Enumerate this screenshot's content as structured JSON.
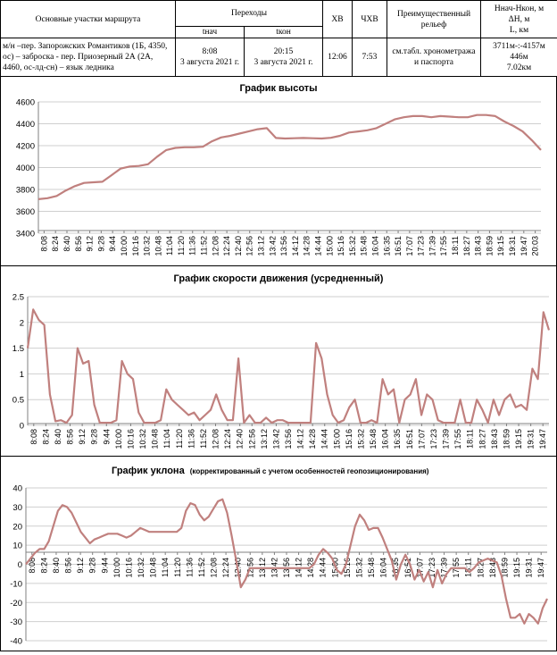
{
  "header_table": {
    "col_sections": "Основные участки маршрута",
    "col_transitions": "Переходы",
    "col_t_start": "tнач",
    "col_t_end": "tкон",
    "col_xv": "ХВ",
    "col_chxv": "ЧХВ",
    "col_relief": "Преимущественный рельеф",
    "col_h_line1": "Hнач-Hкон, м",
    "col_h_line2": "ΔH, м",
    "col_h_line3": "L, км",
    "route_text": "м/н –пер. Запорожских Романтиков (1Б, 4350, ос) – заброска - пер. Приозерный 2А (2А, 4460, ос-лд-сн) – язык ледника",
    "t_start_time": "8:08",
    "t_start_date": "3 августа 2021 г.",
    "t_end_time": "20:15",
    "t_end_date": "3 августа 2021 г.",
    "xv": "12:06",
    "chxv": "7:53",
    "relief": "см.табл. хронометража и паспорта",
    "h_range": "3711м-:-4157м",
    "dh": "446м",
    "length": "7.02км"
  },
  "chart_data": [
    {
      "type": "line",
      "title": "График высоты",
      "color": "#c0807e",
      "ylim": [
        3400,
        4600
      ],
      "yticks": [
        "4600",
        "4400",
        "4200",
        "4000",
        "3800",
        "3600",
        "3400"
      ],
      "xticks": [
        "8:08",
        "8:24",
        "8:40",
        "8:56",
        "9:12",
        "9:28",
        "9:44",
        "10:00",
        "10:16",
        "10:32",
        "10:48",
        "11:04",
        "11:20",
        "11:36",
        "11:52",
        "12:08",
        "12:24",
        "12:40",
        "12:56",
        "13:12",
        "13:42",
        "13:56",
        "14:12",
        "14:28",
        "14:44",
        "15:00",
        "15:16",
        "15:32",
        "15:48",
        "16:04",
        "16:35",
        "16:51",
        "17:07",
        "17:23",
        "17:39",
        "17:55",
        "18:11",
        "18:27",
        "18:43",
        "18:59",
        "19:15",
        "19:31",
        "19:47",
        "20:03"
      ],
      "values": [
        3711,
        3720,
        3740,
        3790,
        3830,
        3860,
        3865,
        3870,
        3930,
        3990,
        4010,
        4015,
        4030,
        4100,
        4160,
        4180,
        4185,
        4185,
        4190,
        4240,
        4275,
        4290,
        4310,
        4330,
        4350,
        4360,
        4270,
        4265,
        4268,
        4270,
        4268,
        4265,
        4272,
        4290,
        4320,
        4330,
        4340,
        4360,
        4400,
        4440,
        4460,
        4470,
        4470,
        4460,
        4470,
        4465,
        4460,
        4460,
        4480,
        4480,
        4470,
        4420,
        4380,
        4330,
        4250,
        4160
      ]
    },
    {
      "type": "line",
      "title": "График скорости движения (усредненный)",
      "color": "#c0807e",
      "ylim": [
        0,
        2.5
      ],
      "yticks": [
        "2.5",
        "2",
        "1.5",
        "1",
        "0.5",
        "0"
      ],
      "xticks": [
        "8:08",
        "8:24",
        "8:40",
        "8:56",
        "9:12",
        "9:28",
        "9:44",
        "10:00",
        "10:16",
        "10:32",
        "10:48",
        "11:04",
        "11:20",
        "11:36",
        "11:52",
        "12:08",
        "12:24",
        "12:40",
        "12:56",
        "13:12",
        "13:42",
        "13:56",
        "14:12",
        "14:28",
        "14:44",
        "15:00",
        "15:16",
        "15:32",
        "15:48",
        "16:04",
        "16:35",
        "16:51",
        "17:07",
        "17:23",
        "17:39",
        "17:55",
        "18:11",
        "18:27",
        "18:43",
        "18:59",
        "19:15",
        "19:31",
        "19:47"
      ],
      "values": [
        1.5,
        2.25,
        2.05,
        1.95,
        0.6,
        0.08,
        0.1,
        0.05,
        0.2,
        1.5,
        1.2,
        1.25,
        0.4,
        0.05,
        0.05,
        0.05,
        0.1,
        1.25,
        1.0,
        0.9,
        0.25,
        0.05,
        0.05,
        0.05,
        0.1,
        0.7,
        0.5,
        0.4,
        0.3,
        0.2,
        0.25,
        0.1,
        0.2,
        0.3,
        0.6,
        0.3,
        0.1,
        0.1,
        1.3,
        0.05,
        0.2,
        0.05,
        0.05,
        0.15,
        0.05,
        0.1,
        0.1,
        0.05,
        0.05,
        0.05,
        0.05,
        0.05,
        1.6,
        1.3,
        0.6,
        0.2,
        0.05,
        0.1,
        0.35,
        0.5,
        0.05,
        0.05,
        0.1,
        0.05,
        0.9,
        0.6,
        0.7,
        0.05,
        0.5,
        0.6,
        0.9,
        0.2,
        0.6,
        0.5,
        0.1,
        0.05,
        0.05,
        0.05,
        0.5,
        0.05,
        0.05,
        0.5,
        0.3,
        0.05,
        0.5,
        0.2,
        0.5,
        0.6,
        0.35,
        0.4,
        0.3,
        1.1,
        0.9,
        2.2,
        1.85
      ]
    },
    {
      "type": "line",
      "title": "График уклона",
      "subtitle": "(корректированный  с учетом особенностей  геопозиционирования)",
      "color": "#c0807e",
      "ylim": [
        -40,
        40
      ],
      "yticks": [
        "40",
        "30",
        "20",
        "10",
        "0",
        "-10",
        "-20",
        "-30",
        "-40"
      ],
      "xticks": [
        "8:08",
        "8:24",
        "8:40",
        "8:56",
        "9:12",
        "9:28",
        "9:44",
        "10:00",
        "10:16",
        "10:32",
        "10:48",
        "11:04",
        "11:20",
        "11:36",
        "11:52",
        "12:08",
        "12:24",
        "12:40",
        "12:56",
        "13:12",
        "13:42",
        "13:56",
        "14:12",
        "14:28",
        "14:44",
        "15:00",
        "15:16",
        "15:32",
        "15:48",
        "16:04",
        "16:35",
        "16:51",
        "17:07",
        "17:23",
        "17:39",
        "17:55",
        "18:11",
        "18:27",
        "18:43",
        "18:59",
        "19:15",
        "19:31",
        "19:47"
      ],
      "values": [
        0,
        3,
        6,
        8,
        8,
        12,
        20,
        28,
        31,
        30,
        27,
        22,
        17,
        14,
        11,
        13,
        14,
        15,
        16,
        16,
        16,
        15,
        14,
        15,
        17,
        19,
        18,
        17,
        17,
        17,
        17,
        17,
        17,
        17,
        19,
        28,
        32,
        31,
        26,
        23,
        25,
        29,
        33,
        34,
        27,
        15,
        2,
        -12,
        -8,
        -2,
        -2,
        -2,
        -2,
        -2,
        -2,
        -2,
        -2,
        -2,
        -2,
        -2,
        -2,
        -2,
        -2,
        0,
        5,
        8,
        6,
        3,
        -3,
        -5,
        0,
        10,
        20,
        26,
        23,
        18,
        19,
        19,
        14,
        8,
        2,
        -8,
        0,
        5,
        0,
        -8,
        -3,
        -9,
        -4,
        -12,
        -3,
        -10,
        -5,
        -2,
        -2,
        -2,
        -2,
        -4,
        -2,
        1,
        2,
        3,
        2,
        1,
        -6,
        -18,
        -28,
        -28,
        -26,
        -31,
        -26,
        -28,
        -31,
        -23,
        -18
      ]
    }
  ]
}
